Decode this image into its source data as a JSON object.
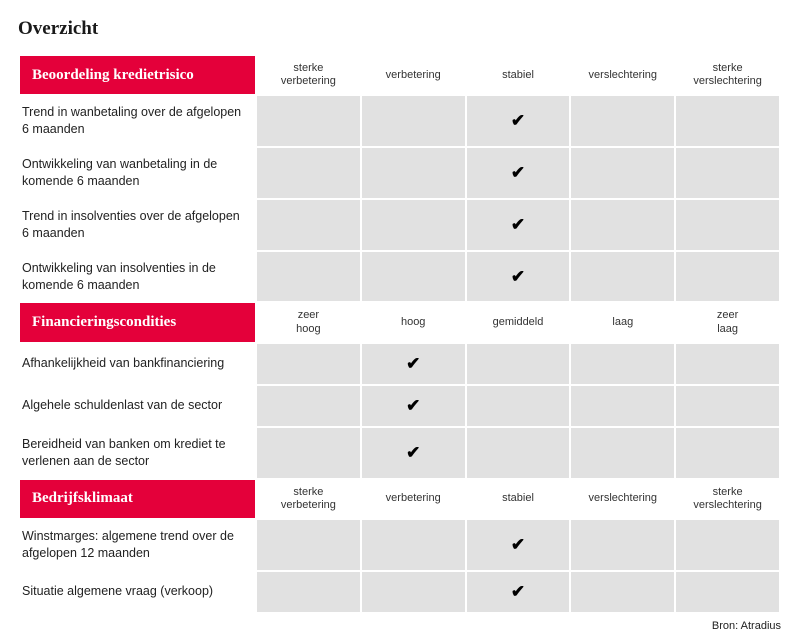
{
  "title": "Overzicht",
  "checkmark": "✔",
  "colors": {
    "accent": "#e4003a",
    "cell_bg": "#e1e1e1",
    "text": "#222222",
    "bg": "#ffffff"
  },
  "sections": [
    {
      "header": "Beoordeling kredietrisico",
      "columns": [
        "sterke verbetering",
        "verbetering",
        "stabiel",
        "verslechtering",
        "sterke verslechtering"
      ],
      "rows": [
        {
          "label": "Trend in wanbetaling over de afgelopen 6 maanden",
          "checkedIndex": 2
        },
        {
          "label": "Ontwikkeling van wanbetaling in de komende 6 maanden",
          "checkedIndex": 2
        },
        {
          "label": "Trend in insolventies over de afgelopen 6 maanden",
          "checkedIndex": 2
        },
        {
          "label": "Ontwikkeling van insolventies in de komende 6 maanden",
          "checkedIndex": 2
        }
      ]
    },
    {
      "header": "Financieringscondities",
      "columns": [
        "zeer hoog",
        "hoog",
        "gemiddeld",
        "laag",
        "zeer laag"
      ],
      "rows": [
        {
          "label": "Afhankelijkheid van bankfinanciering",
          "checkedIndex": 1
        },
        {
          "label": "Algehele schuldenlast van de sector",
          "checkedIndex": 1
        },
        {
          "label": "Bereidheid van banken om krediet te verlenen aan de sector",
          "checkedIndex": 1
        }
      ]
    },
    {
      "header": "Bedrijfsklimaat",
      "columns": [
        "sterke verbetering",
        "verbetering",
        "stabiel",
        "verslechtering",
        "sterke verslechtering"
      ],
      "rows": [
        {
          "label": "Winstmarges: algemene trend over de afgelopen 12 maanden",
          "checkedIndex": 2
        },
        {
          "label": "Situatie algemene vraag (verkoop)",
          "checkedIndex": 2
        }
      ]
    }
  ],
  "source": "Bron: Atradius"
}
